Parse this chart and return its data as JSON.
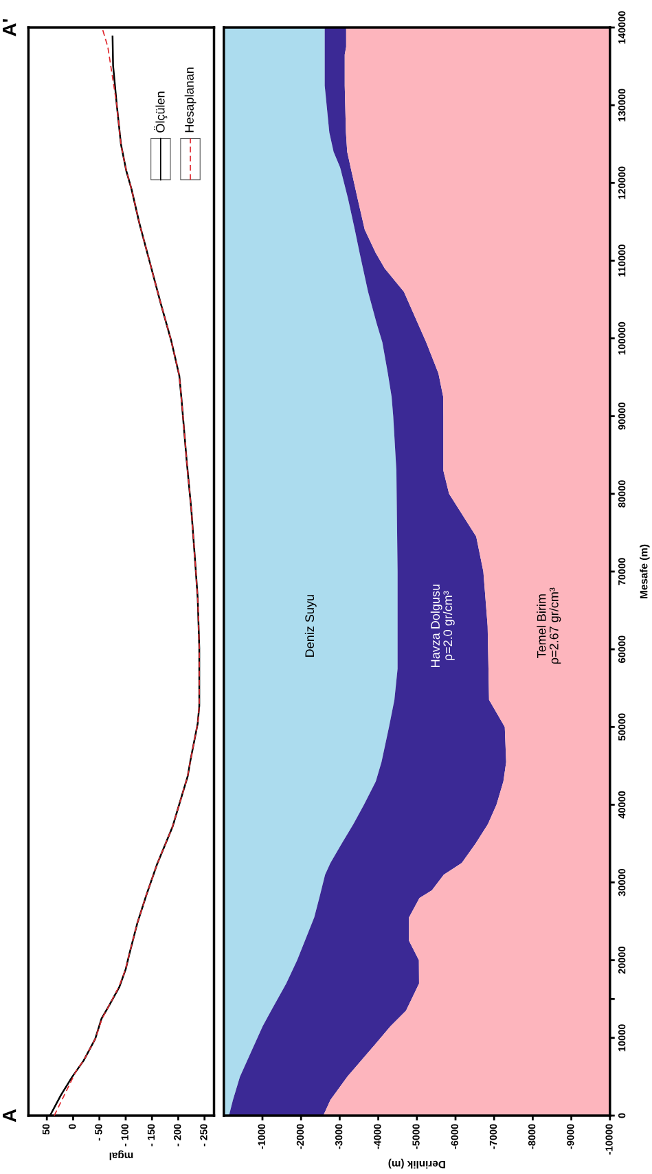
{
  "chart_data": [
    {
      "type": "line",
      "orientation": "horizontal",
      "xlabel": "mgal",
      "xlim": [
        85,
        -268
      ],
      "xticks": [
        50,
        0,
        {
          "value": -50,
          "label": "- 50"
        },
        {
          "value": -100,
          "label": "- 100"
        },
        {
          "value": -150,
          "label": "- 150"
        },
        {
          "value": -200,
          "label": "- 200"
        },
        {
          "value": -250,
          "label": "- 250"
        }
      ],
      "ylim": [
        0,
        140000
      ],
      "tick_labels": "x",
      "legend": "top right",
      "annotations": [
        "A",
        "A'"
      ],
      "series": [
        {
          "name": "Ölçülen",
          "color": "#000000",
          "line_style": "solid",
          "x": [
            0,
            2670,
            4960,
            7080,
            9860,
            12480,
            14110,
            16560,
            18840,
            20800,
            24730,
            28320,
            32400,
            37140,
            43680,
            45640,
            50470,
            52720,
            60130,
            66560,
            71390,
            77830,
            84270,
            92310,
            95190,
            99590,
            104660,
            109750,
            114820,
            119220,
            121590,
            124970,
            130060,
            135130,
            138860
          ],
          "values": [
            44,
            23,
            2,
            -20,
            -42,
            -54,
            -68,
            -88,
            -100,
            -107,
            -122,
            -139,
            -160,
            -189,
            -218,
            -223,
            -237,
            -240,
            -240,
            -237,
            -232,
            -225,
            -216,
            -206,
            -202,
            -187,
            -166,
            -146,
            -126,
            -111,
            -101,
            -91,
            -83,
            -76,
            -75
          ]
        },
        {
          "name": "Hesaplanan",
          "color": "#e0282e",
          "line_style": "dashed",
          "x": [
            0,
            5770,
            7080,
            9860,
            12480,
            14110,
            16560,
            18840,
            20800,
            24730,
            28320,
            32400,
            37140,
            43680,
            45640,
            50470,
            52720,
            60130,
            66560,
            71390,
            77830,
            84270,
            92310,
            95190,
            99590,
            104660,
            109750,
            114820,
            119220,
            121590,
            124970,
            130060,
            134450,
            137500,
            140000
          ],
          "values": [
            36,
            -6,
            -20,
            -42,
            -55,
            -68,
            -87,
            -100,
            -107,
            -122,
            -139,
            -160,
            -189,
            -218,
            -223,
            -237,
            -240,
            -240,
            -237,
            -232,
            -225,
            -216,
            -206,
            -202,
            -187,
            -166,
            -146,
            -126,
            -111,
            -101,
            -91,
            -83,
            -73,
            -66,
            -55
          ]
        }
      ]
    },
    {
      "type": "area",
      "orientation": "horizontal",
      "stacked": true,
      "xlabel": "Derinlik (m)",
      "ylabel": "Mesafe (m)",
      "xlim": [
        0,
        -10000
      ],
      "xticks": [
        -1000,
        -2000,
        -3000,
        -4000,
        -5000,
        -6000,
        -7000,
        -8000,
        -9000,
        -10000
      ],
      "ylim": [
        0,
        140000
      ],
      "yticks": [
        0,
        10000,
        {
          "value": 15000,
          "label": null
        },
        20000,
        30000,
        40000,
        50000,
        60000,
        70000,
        80000,
        90000,
        100000,
        110000,
        120000,
        130000,
        140000
      ],
      "x": [
        0,
        2000,
        5000,
        9000,
        11500,
        13500,
        17000,
        20000,
        22500,
        25500,
        28000,
        29000,
        31000,
        32500,
        35000,
        37500,
        40000,
        43000,
        45500,
        50000,
        53500,
        57500,
        63000,
        70000,
        74500,
        80000,
        83000,
        90000,
        92500,
        95500,
        99500,
        102000,
        106000,
        109000,
        111000,
        114000,
        118000,
        122000,
        124000,
        126500,
        132500,
        136500,
        137500,
        140000
      ],
      "series": [
        {
          "name": "Deniz Suyu",
          "color": "#acdcee",
          "values": [
            -133,
            -236,
            -417,
            -779,
            -1005,
            -1225,
            -1616,
            -1899,
            -2100,
            -2341,
            -2472,
            -2522,
            -2623,
            -2761,
            -3053,
            -3355,
            -3629,
            -3936,
            -4084,
            -4278,
            -4418,
            -4500,
            -4500,
            -4500,
            -4489,
            -4476,
            -4469,
            -4387,
            -4345,
            -4248,
            -4105,
            -3954,
            -3736,
            -3604,
            -3516,
            -3392,
            -3216,
            -3012,
            -2843,
            -2732,
            -2613,
            -2613,
            -2613,
            -2613
          ]
        },
        {
          "name": "Havza Dolgusu\nρ=2.0 gr/cm³",
          "color": "#3b2995",
          "values": [
            -2443,
            -2524,
            -2779,
            -3110,
            -3309,
            -3493,
            -3440,
            -3153,
            -2696,
            -2455,
            -2595,
            -2867,
            -3074,
            -3401,
            -3467,
            -3484,
            -3432,
            -3304,
            -3228,
            -2998,
            -2451,
            -2354,
            -2332,
            -2221,
            -2047,
            -1357,
            -1216,
            -1298,
            -1336,
            -1310,
            -1136,
            -1065,
            -928,
            -563,
            -416,
            -257,
            -248,
            -272,
            -352,
            -430,
            -518,
            -518,
            -555,
            -555
          ]
        },
        {
          "name": "Temel Birim\nρ=2.67 gr/cm³",
          "color": "#fdb5bd",
          "values": [
            -7424,
            -7240,
            -6804,
            -6111,
            -5686,
            -5282,
            -4944,
            -4948,
            -5204,
            -5204,
            -4933,
            -4611,
            -4303,
            -3838,
            -3480,
            -3161,
            -2939,
            -2760,
            -2688,
            -2724,
            -3131,
            -3146,
            -3168,
            -3279,
            -3464,
            -4167,
            -4315,
            -4315,
            -4319,
            -4442,
            -4759,
            -4981,
            -5336,
            -5833,
            -6068,
            -6351,
            -6536,
            -6716,
            -6805,
            -6838,
            -6869,
            -6869,
            -6832,
            -6832
          ]
        }
      ]
    }
  ]
}
